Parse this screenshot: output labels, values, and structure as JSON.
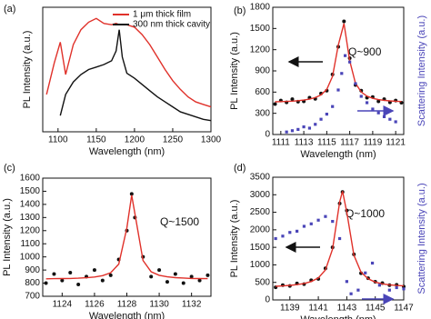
{
  "chart_data": [
    {
      "type": "line",
      "panel_label": "(a)",
      "xlabel": "Wavelength (nm)",
      "ylabel": "PL Intensity (a.u.)",
      "xlim": [
        1080,
        1300
      ],
      "xticks": [
        1100,
        1150,
        1200,
        1250,
        1300
      ],
      "ylim": [
        0,
        1
      ],
      "x": [
        1085,
        1095,
        1103,
        1110,
        1120,
        1130,
        1140,
        1150,
        1160,
        1170,
        1176,
        1180,
        1184,
        1190,
        1200,
        1210,
        1220,
        1230,
        1240,
        1250,
        1260,
        1270,
        1280,
        1290,
        1300
      ],
      "legend": "upper-right",
      "series": [
        {
          "name": "1 μm thick film",
          "color": "#e0312a",
          "style": "line",
          "values": [
            0.3,
            0.55,
            0.72,
            0.46,
            0.7,
            0.82,
            0.88,
            0.91,
            0.87,
            0.86,
            0.87,
            0.86,
            0.86,
            0.86,
            0.84,
            0.78,
            0.7,
            0.6,
            0.5,
            0.41,
            0.34,
            0.28,
            0.24,
            0.22,
            0.2
          ]
        },
        {
          "name": "300 nm thick cavity",
          "color": "#111111",
          "style": "line",
          "values": [
            null,
            null,
            0.13,
            0.3,
            0.4,
            0.46,
            0.5,
            0.52,
            0.54,
            0.57,
            0.65,
            0.82,
            0.6,
            0.47,
            0.43,
            0.38,
            0.33,
            0.28,
            0.24,
            0.2,
            0.16,
            0.14,
            0.12,
            0.1,
            0.09
          ]
        }
      ]
    },
    {
      "type": "scatter",
      "panel_label": "(b)",
      "xlabel": "Wavelength (nm)",
      "ylabel": "PL Intensity (a.u.)",
      "y2label": "Scattering Intensity (a.u.)",
      "annotation": "Q~900",
      "xlim": [
        1110.3,
        1121.7
      ],
      "xticks": [
        1111,
        1113,
        1115,
        1117,
        1119,
        1121
      ],
      "ylim": [
        0,
        1800
      ],
      "yticks": [
        0,
        300,
        600,
        900,
        1200,
        1500,
        1800
      ],
      "y2lim": [
        0,
        1
      ],
      "x": [
        1110.5,
        1111,
        1111.5,
        1112,
        1112.5,
        1113,
        1113.5,
        1114,
        1114.5,
        1115,
        1115.5,
        1116,
        1116.5,
        1117,
        1117.5,
        1118,
        1118.5,
        1119,
        1119.5,
        1120,
        1120.5,
        1121,
        1121.5
      ],
      "series": [
        {
          "color": "#111111",
          "style": "dots",
          "values": [
            430,
            480,
            455,
            500,
            465,
            470,
            520,
            505,
            580,
            620,
            850,
            1240,
            1600,
            1080,
            700,
            620,
            520,
            530,
            470,
            500,
            455,
            480,
            450
          ]
        },
        {
          "color": "#e0312a",
          "style": "line",
          "values": [
            463,
            465,
            468,
            472,
            478,
            487,
            500,
            522,
            561,
            639,
            821,
            1262,
            1571,
            1044,
            727,
            600,
            542,
            512,
            494,
            483,
            476,
            470,
            467
          ]
        },
        {
          "color": "#4a45b8",
          "style": "squares",
          "axis": "y2",
          "x": [
            1111.5,
            1112,
            1112.5,
            1113,
            1113.5,
            1114,
            1114.5,
            1115,
            1115.5,
            1116,
            1116.3,
            1116.6,
            1117,
            1117.5,
            1118,
            1118.5,
            1119,
            1119.5,
            1120,
            1120.5,
            1121
          ],
          "values": [
            0.02,
            0.03,
            0.04,
            0.06,
            0.05,
            0.08,
            0.12,
            0.16,
            0.22,
            0.35,
            0.48,
            0.62,
            0.57,
            0.4,
            0.3,
            0.25,
            0.2,
            0.17,
            0.14,
            0.12,
            0.1
          ]
        }
      ]
    },
    {
      "type": "scatter",
      "panel_label": "(c)",
      "xlabel": "Wavelength (nm)",
      "ylabel": "PL Intensity (a.u.)",
      "annotation": "Q~1500",
      "xlim": [
        1122.8,
        1133.2
      ],
      "xticks": [
        1124,
        1126,
        1128,
        1130,
        1132
      ],
      "ylim": [
        700,
        1600
      ],
      "yticks": [
        700,
        800,
        900,
        1000,
        1100,
        1200,
        1300,
        1400,
        1500,
        1600
      ],
      "x": [
        1123,
        1123.5,
        1124,
        1124.5,
        1125,
        1125.5,
        1126,
        1126.5,
        1127,
        1127.5,
        1128,
        1128.3,
        1128.5,
        1129,
        1129.5,
        1130,
        1130.5,
        1131,
        1131.5,
        1132,
        1132.5,
        1133
      ],
      "series": [
        {
          "color": "#111111",
          "style": "dots",
          "values": [
            800,
            870,
            820,
            880,
            790,
            850,
            900,
            820,
            860,
            980,
            1200,
            1480,
            1300,
            1000,
            850,
            900,
            810,
            870,
            800,
            850,
            820,
            860
          ]
        },
        {
          "color": "#e0312a",
          "style": "line",
          "values": [
            833,
            834,
            835,
            836,
            838,
            841,
            847,
            857,
            879,
            945,
            1220,
            1470,
            1328,
            973,
            887,
            860,
            848,
            842,
            839,
            836,
            835,
            834
          ]
        }
      ]
    },
    {
      "type": "scatter",
      "panel_label": "(d)",
      "xlabel": "Wavelength (nm)",
      "ylabel": "PL Intensity (a.u.)",
      "y2label": "Scattering Intensity (a.u.)",
      "annotation": "Q~1000",
      "xlim": [
        1137.8,
        1147
      ],
      "xticks": [
        1139,
        1141,
        1143,
        1145,
        1147
      ],
      "ylim": [
        0,
        3500
      ],
      "yticks": [
        0,
        500,
        1000,
        1500,
        2000,
        2500,
        3000,
        3500
      ],
      "y2lim": [
        0,
        1
      ],
      "x": [
        1138,
        1138.5,
        1139,
        1139.5,
        1140,
        1140.5,
        1141,
        1141.5,
        1142,
        1142.5,
        1142.7,
        1143,
        1143.5,
        1144,
        1144.5,
        1145,
        1145.5,
        1146,
        1146.5,
        1147
      ],
      "series": [
        {
          "color": "#111111",
          "style": "dots",
          "values": [
            360,
            420,
            400,
            470,
            450,
            560,
            600,
            900,
            1500,
            2750,
            3080,
            2550,
            1300,
            760,
            620,
            520,
            480,
            420,
            430,
            380
          ]
        },
        {
          "color": "#e0312a",
          "style": "line",
          "values": [
            390,
            400,
            414,
            435,
            468,
            523,
            628,
            856,
            1446,
            2799,
            3100,
            2503,
            1276,
            794,
            601,
            509,
            460,
            430,
            411,
            398
          ]
        },
        {
          "color": "#4a45b8",
          "style": "squares",
          "axis": "y2",
          "x": [
            1138,
            1138.5,
            1139,
            1139.5,
            1140,
            1140.5,
            1141,
            1141.5,
            1142,
            1142.5,
            1143,
            1143.3,
            1143.8,
            1144.3,
            1144.8,
            1145.3,
            1146,
            1146.5,
            1147
          ],
          "values": [
            0.5,
            0.52,
            0.55,
            0.56,
            0.6,
            0.62,
            0.65,
            0.68,
            0.64,
            0.5,
            0.15,
            0.05,
            0.08,
            0.22,
            0.3,
            0.12,
            0.08,
            0.1,
            0.09
          ]
        }
      ]
    }
  ]
}
